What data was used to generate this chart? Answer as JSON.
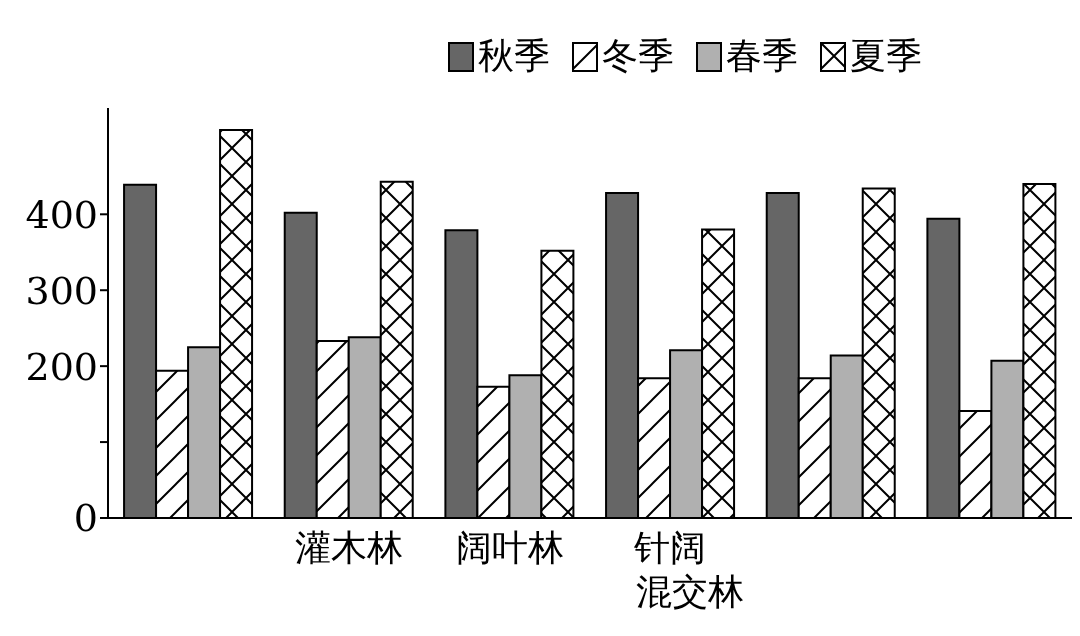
{
  "chart_data": {
    "type": "bar",
    "categories": [
      null,
      "灌木林",
      "阔叶林",
      "针阔混交林",
      null,
      null
    ],
    "series": [
      {
        "name": "秋季",
        "color": "#666666",
        "values": [
          439,
          402,
          379,
          428,
          428,
          394
        ]
      },
      {
        "name": "冬季",
        "color": "#000000",
        "values": [
          194,
          233,
          173,
          184,
          184,
          141
        ]
      },
      {
        "name": "春季",
        "color": "#b0b0b0",
        "values": [
          225,
          238,
          188,
          221,
          214,
          207
        ]
      },
      {
        "name": "夏季",
        "color": "#000000",
        "values": [
          511,
          443,
          352,
          380,
          434,
          440
        ]
      }
    ],
    "ylim": [
      0,
      540
    ],
    "yticks": [
      0,
      {
        "value": 100,
        "label": null
      },
      200,
      300,
      400
    ],
    "grid": false,
    "legend": "top right"
  }
}
